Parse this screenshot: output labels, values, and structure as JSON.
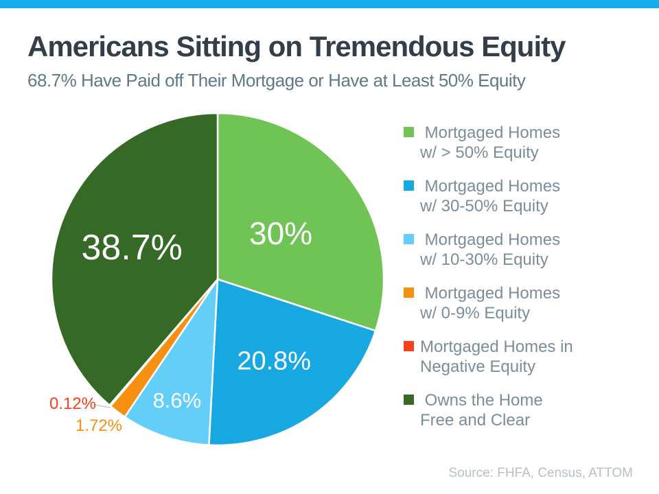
{
  "page": {
    "accent_bar_color": "#18ACEC"
  },
  "chart_data": {
    "type": "pie",
    "title": "Americans Sitting on Tremendous Equity",
    "subtitle": "68.7% Have Paid off Their Mortgage or Have at Least 50% Equity",
    "source": "Source: FHFA, Census, ATTOM",
    "start_angle_deg": -90,
    "direction": "clockwise",
    "legend_position": "right",
    "label_color_inside": "#ffffff",
    "slices": [
      {
        "label": "Mortgaged Homes w/ > 50% Equity",
        "value": 30,
        "display": "30%",
        "color": "#6FC455",
        "legend_lines": [
          " Mortgaged Homes",
          "w/ > 50% Equity"
        ]
      },
      {
        "label": "Mortgaged Homes w/ 30-50% Equity",
        "value": 20.8,
        "display": "20.8%",
        "color": "#18A8E1",
        "legend_lines": [
          " Mortgaged Homes",
          "w/ 30-50% Equity"
        ]
      },
      {
        "label": "Mortgaged Homes w/ 10-30% Equity",
        "value": 8.6,
        "display": "8.6%",
        "color": "#63CEF8",
        "legend_lines": [
          " Mortgaged Homes",
          "w/ 10-30% Equity"
        ]
      },
      {
        "label": "Mortgaged Homes w/ 0-9% Equity",
        "value": 1.72,
        "display": "1.72%",
        "color": "#F78F10",
        "legend_lines": [
          " Mortgaged Homes",
          "w/ 0-9% Equity"
        ]
      },
      {
        "label": "Mortgaged Homes in Negative Equity",
        "value": 0.12,
        "display": "0.12%",
        "color": "#F4401C",
        "legend_lines": [
          "Mortgaged Homes in",
          "Negative Equity"
        ]
      },
      {
        "label": "Owns the Home Free and Clear",
        "value": 38.7,
        "display": "38.7%",
        "color": "#366926",
        "legend_lines": [
          " Owns the Home",
          "Free and Clear"
        ]
      }
    ]
  }
}
